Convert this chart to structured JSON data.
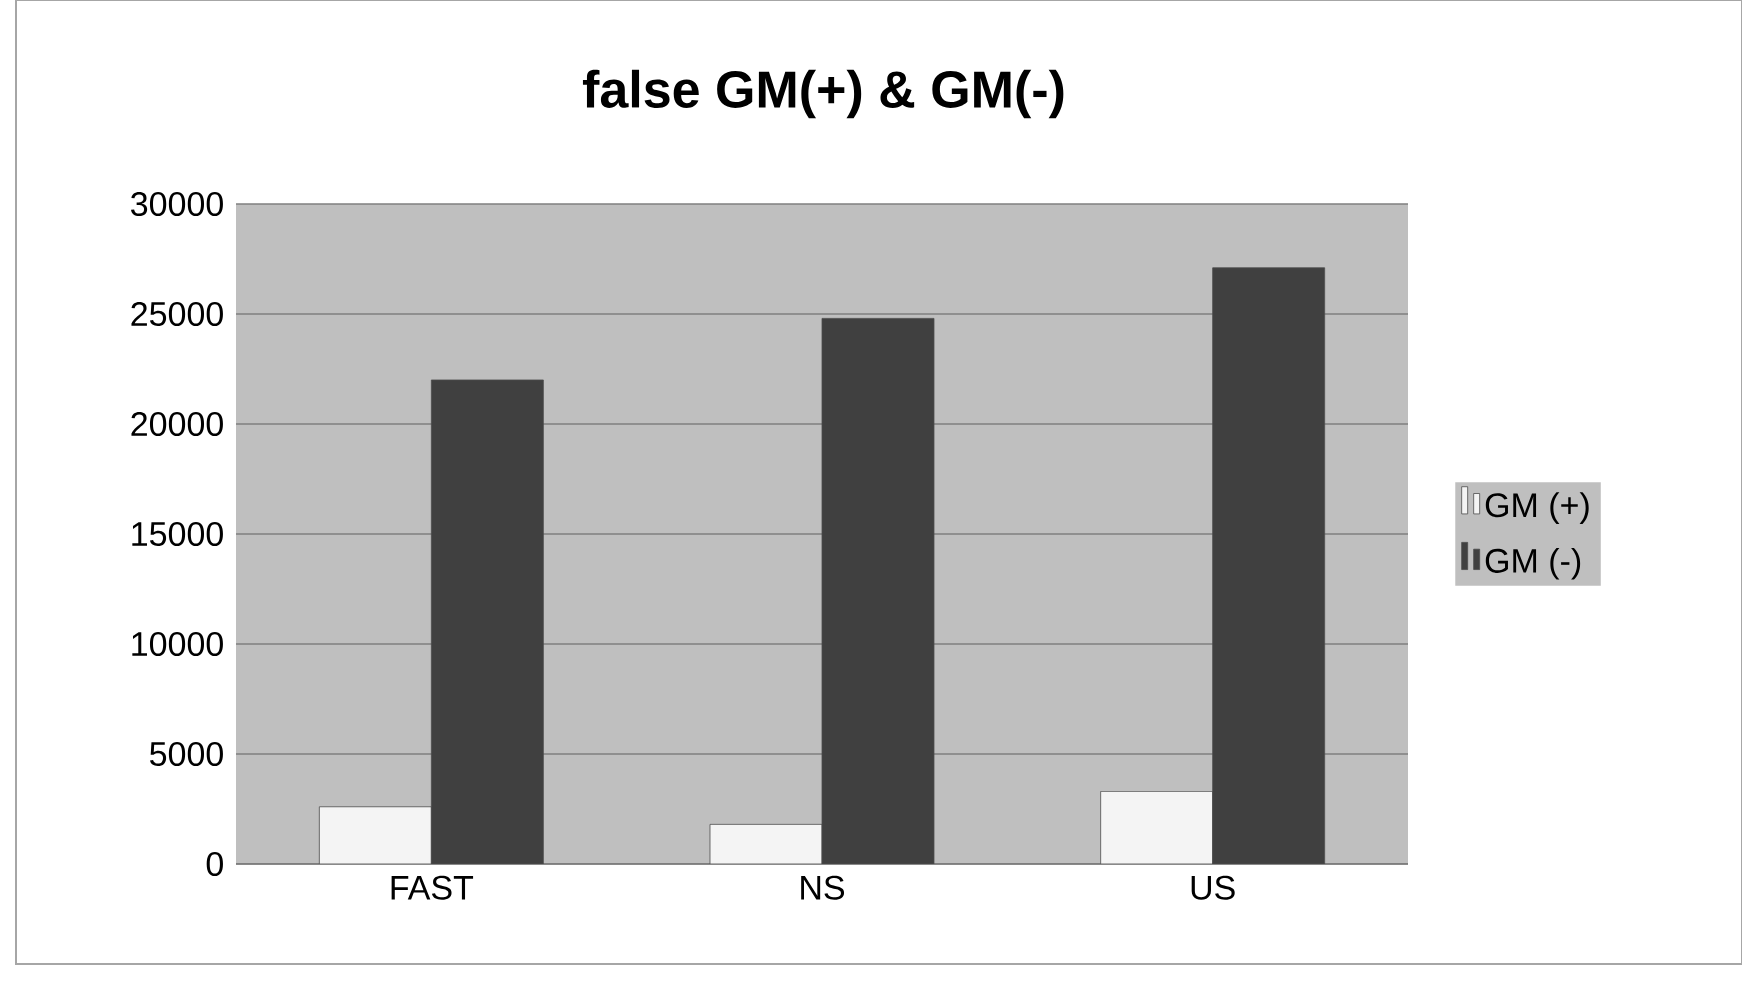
{
  "chart_data": {
    "type": "bar",
    "title": "false  GM(+) & GM(-)",
    "categories": [
      "FAST",
      "NS",
      "US"
    ],
    "series": [
      {
        "name": "GM (+)",
        "color": "#f4f4f4",
        "values": [
          2600,
          1800,
          3300
        ]
      },
      {
        "name": "GM (-)",
        "color": "#404040",
        "values": [
          22000,
          24800,
          27100
        ]
      }
    ],
    "ylim": [
      0,
      30000
    ],
    "yticks": [
      0,
      5000,
      10000,
      15000,
      20000,
      25000,
      30000
    ],
    "grid": "y",
    "legend": "right"
  }
}
